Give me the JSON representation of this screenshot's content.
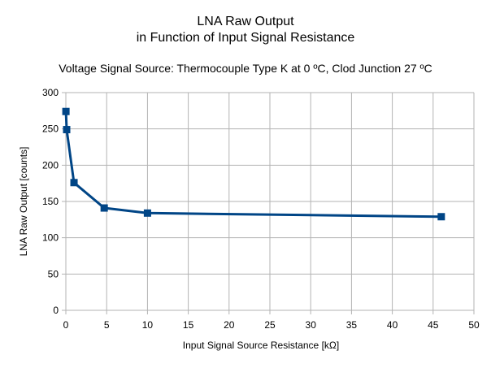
{
  "chart_data": {
    "type": "line",
    "title_line1": "LNA Raw Output",
    "title_line2": "in Function of Input Signal Resistance",
    "subtitle": "Voltage Signal Source: Thermocouple Type K at 0 ºC, Clod Junction 27 ºC",
    "xlabel": "Input Signal Source Resistance [kΩ]",
    "ylabel": "LNA Raw Output [counts]",
    "xlim": [
      0,
      50
    ],
    "ylim": [
      0,
      300
    ],
    "xticks": [
      "0",
      "5",
      "10",
      "15",
      "20",
      "25",
      "30",
      "35",
      "40",
      "45",
      "50"
    ],
    "yticks": [
      "0",
      "50",
      "100",
      "150",
      "200",
      "250",
      "300"
    ],
    "grid": true,
    "series": [
      {
        "color": "#004586",
        "marker": "square",
        "x": [
          0.01,
          0.1,
          1,
          4.7,
          10,
          46
        ],
        "y": [
          274,
          249,
          176,
          141,
          134,
          129
        ]
      }
    ]
  }
}
